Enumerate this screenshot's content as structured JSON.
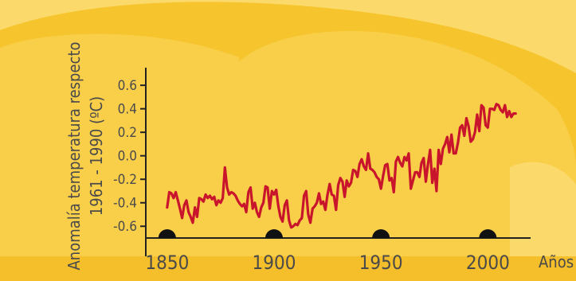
{
  "colors": {
    "background": "#f6c42c",
    "cloud_light": "#fbd96a",
    "cloud_mid": "#f9cf4a",
    "axis": "#222222",
    "line": "#c8152c",
    "text": "#4a4a4a"
  },
  "chart_data": {
    "type": "line",
    "ylabel_line1": "Anomalía temperatura respecto",
    "ylabel_line2": "1961 - 1990 (ºC)",
    "xlabel": "Años",
    "x_ticks": [
      1850,
      1900,
      1950,
      2000
    ],
    "x_tick_labels": [
      "1850",
      "1900",
      "1950",
      "2000"
    ],
    "y_ticks": [
      0.6,
      0.4,
      0.2,
      0.0,
      -0.2,
      -0.4,
      -0.6
    ],
    "y_tick_labels": [
      "0.6",
      "0.4",
      "0.2",
      "0.0",
      "-0.2",
      "-0.4",
      "-0.6"
    ],
    "xlim": [
      1840,
      2020
    ],
    "ylim": [
      -0.7,
      0.75
    ],
    "grid": false,
    "series": [
      {
        "x": [
          1850,
          1851,
          1852,
          1853,
          1854,
          1855,
          1856,
          1857,
          1858,
          1859,
          1860,
          1861,
          1862,
          1863,
          1864,
          1865,
          1866,
          1867,
          1868,
          1869,
          1870,
          1871,
          1872,
          1873,
          1874,
          1875,
          1876,
          1877,
          1878,
          1879,
          1880,
          1881,
          1882,
          1883,
          1884,
          1885,
          1886,
          1887,
          1888,
          1889,
          1890,
          1891,
          1892,
          1893,
          1894,
          1895,
          1896,
          1897,
          1898,
          1899,
          1900,
          1901,
          1902,
          1903,
          1904,
          1905,
          1906,
          1907,
          1908,
          1909,
          1910,
          1911,
          1912,
          1913,
          1914,
          1915,
          1916,
          1917,
          1918,
          1919,
          1920,
          1921,
          1922,
          1923,
          1924,
          1925,
          1926,
          1927,
          1928,
          1929,
          1930,
          1931,
          1932,
          1933,
          1934,
          1935,
          1936,
          1937,
          1938,
          1939,
          1940,
          1941,
          1942,
          1943,
          1944,
          1945,
          1946,
          1947,
          1948,
          1949,
          1950,
          1951,
          1952,
          1953,
          1954,
          1955,
          1956,
          1957,
          1958,
          1959,
          1960,
          1961,
          1962,
          1963,
          1964,
          1965,
          1966,
          1967,
          1968,
          1969,
          1970,
          1971,
          1972,
          1973,
          1974,
          1975,
          1976,
          1977,
          1978,
          1979,
          1980,
          1981,
          1982,
          1983,
          1984,
          1985,
          1986,
          1987,
          1988,
          1989,
          1990,
          1991,
          1992,
          1993,
          1994,
          1995,
          1996,
          1997,
          1998,
          1999,
          2000,
          2001,
          2002,
          2003,
          2004,
          2005,
          2006,
          2007,
          2008,
          2009,
          2010,
          2011,
          2012,
          2013
        ],
        "values": [
          -0.44,
          -0.31,
          -0.32,
          -0.36,
          -0.31,
          -0.38,
          -0.45,
          -0.53,
          -0.42,
          -0.38,
          -0.48,
          -0.52,
          -0.57,
          -0.44,
          -0.52,
          -0.36,
          -0.37,
          -0.39,
          -0.33,
          -0.36,
          -0.34,
          -0.37,
          -0.35,
          -0.42,
          -0.38,
          -0.4,
          -0.36,
          -0.1,
          -0.27,
          -0.33,
          -0.31,
          -0.32,
          -0.34,
          -0.38,
          -0.41,
          -0.43,
          -0.41,
          -0.48,
          -0.31,
          -0.27,
          -0.45,
          -0.4,
          -0.48,
          -0.52,
          -0.44,
          -0.4,
          -0.26,
          -0.27,
          -0.45,
          -0.3,
          -0.33,
          -0.29,
          -0.43,
          -0.52,
          -0.56,
          -0.42,
          -0.38,
          -0.55,
          -0.61,
          -0.6,
          -0.58,
          -0.59,
          -0.55,
          -0.53,
          -0.34,
          -0.3,
          -0.5,
          -0.57,
          -0.45,
          -0.43,
          -0.4,
          -0.32,
          -0.41,
          -0.39,
          -0.46,
          -0.33,
          -0.24,
          -0.33,
          -0.34,
          -0.46,
          -0.25,
          -0.19,
          -0.22,
          -0.35,
          -0.21,
          -0.26,
          -0.23,
          -0.12,
          -0.13,
          -0.18,
          -0.07,
          -0.03,
          -0.09,
          -0.12,
          0.02,
          -0.11,
          -0.12,
          -0.14,
          -0.18,
          -0.2,
          -0.28,
          -0.17,
          -0.08,
          -0.07,
          -0.21,
          -0.19,
          -0.31,
          -0.05,
          -0.01,
          -0.06,
          -0.09,
          -0.01,
          -0.04,
          0.02,
          -0.28,
          -0.21,
          -0.14,
          -0.14,
          -0.18,
          -0.06,
          -0.02,
          -0.22,
          -0.07,
          0.05,
          -0.23,
          -0.11,
          -0.3,
          0.05,
          -0.07,
          0.06,
          0.1,
          0.16,
          0.03,
          0.18,
          0.02,
          0.02,
          0.11,
          0.24,
          0.26,
          0.17,
          0.32,
          0.25,
          0.12,
          0.14,
          0.2,
          0.35,
          0.21,
          0.43,
          0.41,
          0.26,
          0.24,
          0.4,
          0.4,
          0.39,
          0.44,
          0.43,
          0.39,
          0.37,
          0.43,
          0.33,
          0.38,
          0.33,
          0.36,
          0.36
        ]
      }
    ]
  }
}
